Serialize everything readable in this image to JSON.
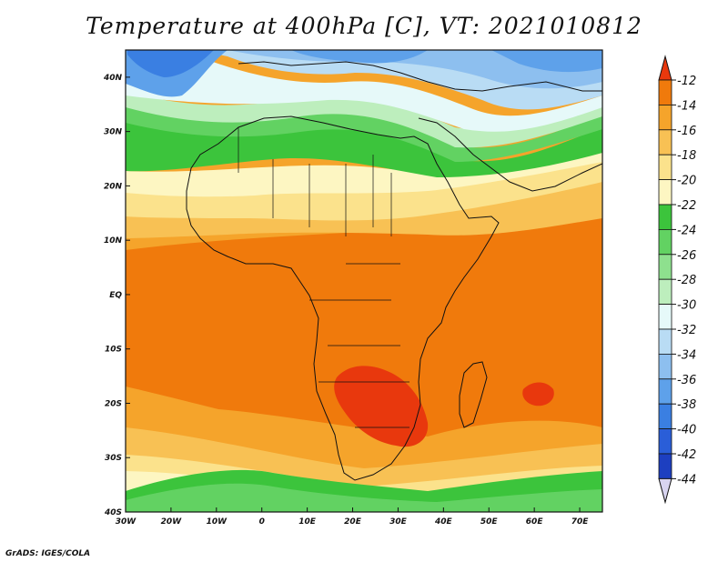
{
  "title": "Temperature at 400hPa [C], VT: 2021010812",
  "footer": "GrADS: IGES/COLA",
  "map": {
    "lon_range": [
      -30,
      75
    ],
    "lat_range": [
      -40,
      45
    ],
    "lat_ticks": [
      {
        "value": 40,
        "label": "40N"
      },
      {
        "value": 30,
        "label": "30N"
      },
      {
        "value": 20,
        "label": "20N"
      },
      {
        "value": 10,
        "label": "10N"
      },
      {
        "value": 0,
        "label": "EQ"
      },
      {
        "value": -10,
        "label": "10S"
      },
      {
        "value": -20,
        "label": "20S"
      },
      {
        "value": -30,
        "label": "30S"
      },
      {
        "value": -40,
        "label": "40S"
      }
    ],
    "lon_ticks": [
      {
        "value": -30,
        "label": "30W"
      },
      {
        "value": -20,
        "label": "20W"
      },
      {
        "value": -10,
        "label": "10W"
      },
      {
        "value": 0,
        "label": "0"
      },
      {
        "value": 10,
        "label": "10E"
      },
      {
        "value": 20,
        "label": "20E"
      },
      {
        "value": 30,
        "label": "30E"
      },
      {
        "value": 40,
        "label": "40E"
      },
      {
        "value": 50,
        "label": "50E"
      },
      {
        "value": 60,
        "label": "60E"
      },
      {
        "value": 70,
        "label": "70E"
      }
    ]
  },
  "colorbar": {
    "labels": [
      "-12",
      "-14",
      "-16",
      "-18",
      "-20",
      "-22",
      "-24",
      "-26",
      "-28",
      "-30",
      "-32",
      "-34",
      "-36",
      "-38",
      "-40",
      "-42",
      "-44"
    ],
    "colors": [
      "#e8380d",
      "#f07a0c",
      "#f5a42b",
      "#f8c154",
      "#fbe28c",
      "#fdf6c2",
      "#3cc43c",
      "#62d262",
      "#8ee08e",
      "#bdeebd",
      "#e6f9f9",
      "#b9dcf4",
      "#8dbfef",
      "#5ea1ea",
      "#3a7fe2",
      "#2a5ed8",
      "#1d3fc0",
      "#102a96"
    ],
    "top_color": "#e8380d",
    "bottom_color": "#d8d4f0"
  }
}
